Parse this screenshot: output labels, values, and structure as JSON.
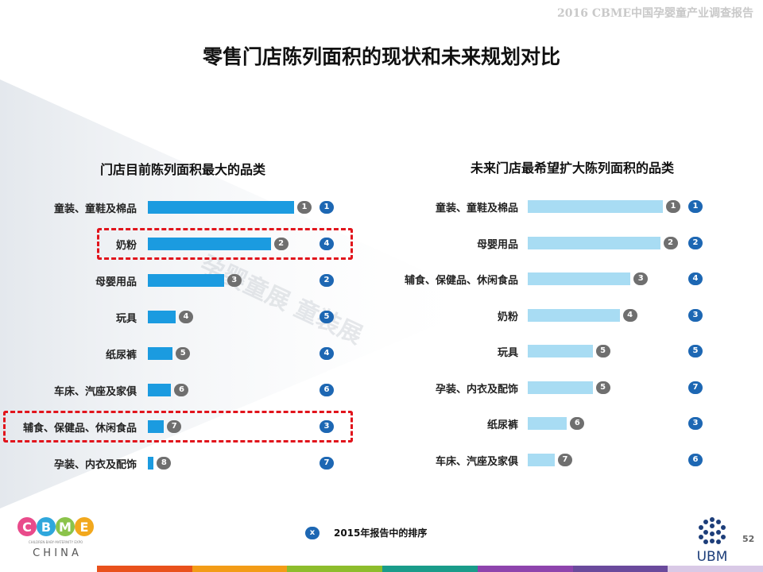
{
  "header": {
    "report_title": "2016 CBME中国孕婴童产业调查报告"
  },
  "main_title": "零售门店陈列面积的现状和未来规划对比",
  "legend": {
    "marker": "x",
    "text": "2015年报告中的排序"
  },
  "page_number": "52",
  "logos": {
    "cbme": {
      "letters": "CBME",
      "china": "C H I N A",
      "tagline": "CHILDREN·BABY·MATERNITY EXPO"
    },
    "ubm": {
      "text": "UBM"
    }
  },
  "watermark": {
    "text": "孕婴童展 童装展"
  },
  "colors": {
    "left_bar": "#1b9be0",
    "right_bar": "#a8dcf3",
    "rank_now": "#6f6f6f",
    "rank_prev": "#1d67b3",
    "highlight": "#e1141c"
  },
  "chart_data": [
    {
      "type": "bar",
      "orientation": "horizontal",
      "title": "门店目前陈列面积最大的品类",
      "categories": [
        "童装、童鞋及棉品",
        "奶粉",
        "母婴用品",
        "玩具",
        "纸尿裤",
        "车床、汽座及家俱",
        "辅食、保健品、休闲食品",
        "孕装、内衣及配饰"
      ],
      "values": [
        100,
        84,
        52,
        19,
        17,
        16,
        11,
        4
      ],
      "value_scale": "relative (0-100), no axis printed",
      "current_rank": [
        "1",
        "2",
        "3",
        "4",
        "5",
        "6",
        "7",
        "8"
      ],
      "rank_2015": [
        "1",
        "4",
        "2",
        "5",
        "4",
        "6",
        "3",
        "7"
      ],
      "highlighted_categories": [
        "奶粉",
        "辅食、保健品、休闲食品"
      ],
      "xlim": [
        0,
        100
      ]
    },
    {
      "type": "bar",
      "orientation": "horizontal",
      "title": "未来门店最希望扩大陈列面积的品类",
      "categories": [
        "童装、童鞋及棉品",
        "母婴用品",
        "辅食、保健品、休闲食品",
        "奶粉",
        "玩具",
        "孕装、内衣及配饰",
        "纸尿裤",
        "车床、汽座及家俱"
      ],
      "values": [
        100,
        98,
        76,
        68,
        48,
        48,
        29,
        20
      ],
      "value_scale": "relative (0-100), no axis printed",
      "current_rank": [
        "1",
        "2",
        "3",
        "4",
        "5",
        "5",
        "6",
        "7"
      ],
      "rank_2015": [
        "1",
        "2",
        "4",
        "3",
        "5",
        "7",
        "3",
        "6"
      ],
      "xlim": [
        0,
        100
      ]
    }
  ]
}
